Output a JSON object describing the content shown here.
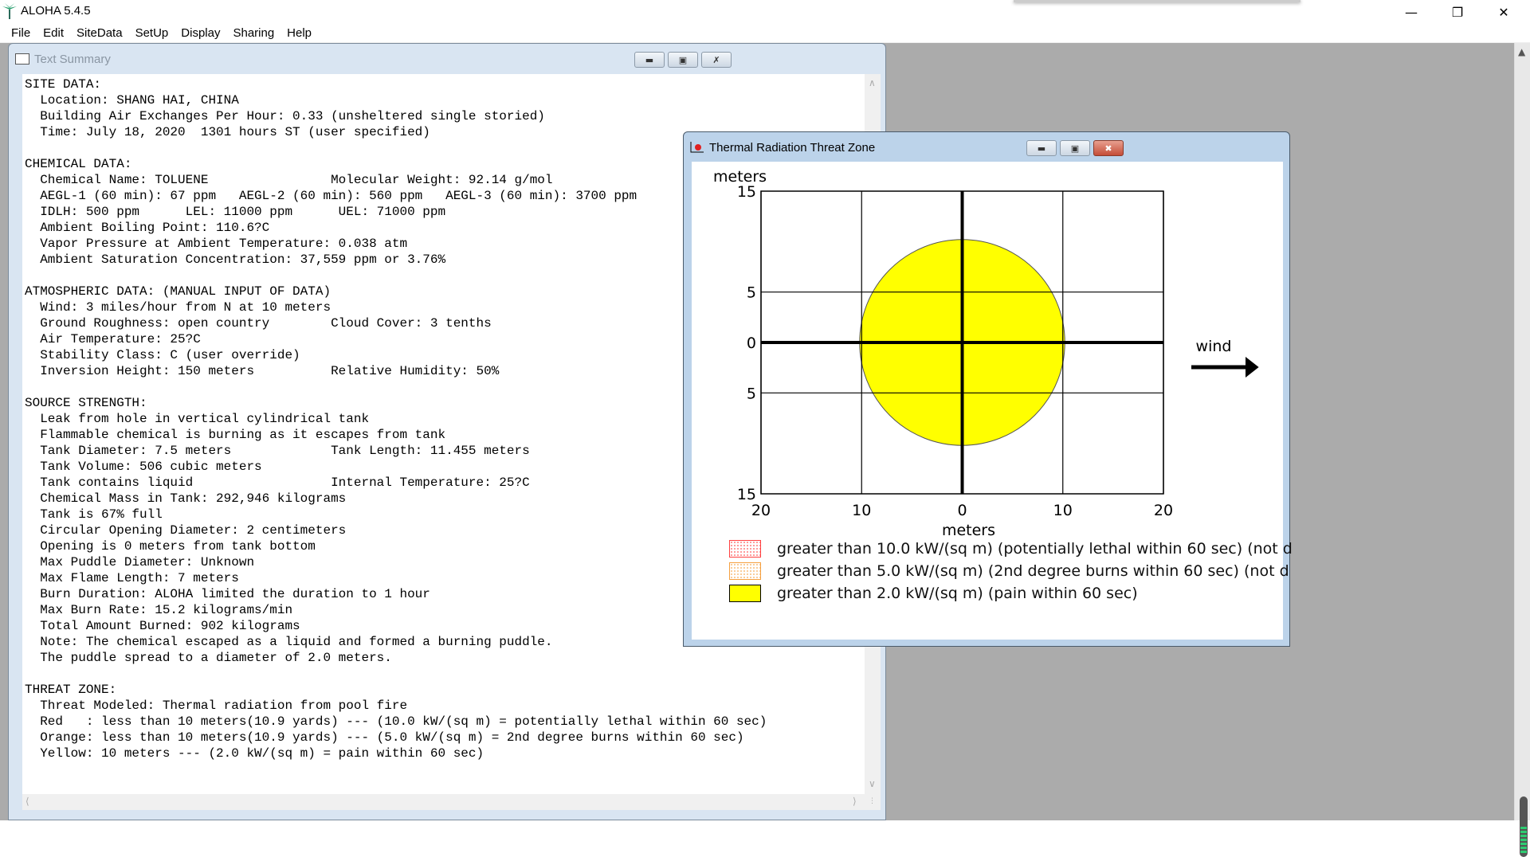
{
  "app": {
    "title": "ALOHA 5.4.5",
    "icon": "palm-tree-icon"
  },
  "menu": [
    "File",
    "Edit",
    "SiteData",
    "SetUp",
    "Display",
    "Sharing",
    "Help"
  ],
  "text_summary": {
    "title": "Text Summary",
    "lines": [
      "SITE DATA:",
      "  Location: SHANG HAI, CHINA",
      "  Building Air Exchanges Per Hour: 0.33 (unsheltered single storied)",
      "  Time: July 18, 2020  1301 hours ST (user specified)",
      "",
      "CHEMICAL DATA:",
      "  Chemical Name: TOLUENE                Molecular Weight: 92.14 g/mol",
      "  AEGL-1 (60 min): 67 ppm   AEGL-2 (60 min): 560 ppm   AEGL-3 (60 min): 3700 ppm",
      "  IDLH: 500 ppm      LEL: 11000 ppm      UEL: 71000 ppm",
      "  Ambient Boiling Point: 110.6?C",
      "  Vapor Pressure at Ambient Temperature: 0.038 atm",
      "  Ambient Saturation Concentration: 37,559 ppm or 3.76%",
      "",
      "ATMOSPHERIC DATA: (MANUAL INPUT OF DATA)",
      "  Wind: 3 miles/hour from N at 10 meters",
      "  Ground Roughness: open country        Cloud Cover: 3 tenths",
      "  Air Temperature: 25?C",
      "  Stability Class: C (user override)",
      "  Inversion Height: 150 meters          Relative Humidity: 50%",
      "",
      "SOURCE STRENGTH:",
      "  Leak from hole in vertical cylindrical tank",
      "  Flammable chemical is burning as it escapes from tank",
      "  Tank Diameter: 7.5 meters             Tank Length: 11.455 meters",
      "  Tank Volume: 506 cubic meters",
      "  Tank contains liquid                  Internal Temperature: 25?C",
      "  Chemical Mass in Tank: 292,946 kilograms",
      "  Tank is 67% full",
      "  Circular Opening Diameter: 2 centimeters",
      "  Opening is 0 meters from tank bottom",
      "  Max Puddle Diameter: Unknown",
      "  Max Flame Length: 7 meters",
      "  Burn Duration: ALOHA limited the duration to 1 hour",
      "  Max Burn Rate: 15.2 kilograms/min",
      "  Total Amount Burned: 902 kilograms",
      "  Note: The chemical escaped as a liquid and formed a burning puddle.",
      "  The puddle spread to a diameter of 2.0 meters.",
      "",
      "THREAT ZONE:",
      "  Threat Modeled: Thermal radiation from pool fire",
      "  Red   : less than 10 meters(10.9 yards) --- (10.0 kW/(sq m) = potentially lethal within 60 sec)",
      "  Orange: less than 10 meters(10.9 yards) --- (5.0 kW/(sq m) = 2nd degree burns within 60 sec)",
      "  Yellow: 10 meters --- (2.0 kW/(sq m) = pain within 60 sec)"
    ]
  },
  "threat_window": {
    "title": "Thermal Radiation Threat Zone",
    "wind_label": "wind",
    "chart_data": {
      "type": "threat-zone-plot",
      "xlabel": "meters",
      "ylabel": "meters",
      "xlim": [
        -20,
        20
      ],
      "ylim": [
        -15,
        15
      ],
      "x_ticks": [
        {
          "v": -20,
          "label": "20"
        },
        {
          "v": -10,
          "label": "10"
        },
        {
          "v": 0,
          "label": "0"
        },
        {
          "v": 10,
          "label": "10"
        },
        {
          "v": 20,
          "label": "20"
        }
      ],
      "y_ticks": [
        {
          "v": 15,
          "label": "15"
        },
        {
          "v": 5,
          "label": "5"
        },
        {
          "v": 0,
          "label": "0"
        },
        {
          "v": -5,
          "label": "5"
        },
        {
          "v": -15,
          "label": "15"
        }
      ],
      "grid": true,
      "zones": [
        {
          "level": "yellow",
          "color": "#ffff00",
          "center": [
            0,
            0
          ],
          "radius_m": 10.2
        }
      ]
    },
    "legend": [
      {
        "text": "greater than 10.0 kW/(sq m) (potentially lethal within 60 sec) (not d",
        "color": "#ff4040",
        "pattern": "dotted"
      },
      {
        "text": "greater than 5.0 kW/(sq m) (2nd degree burns within 60 sec) (not d",
        "color": "#f5a040",
        "pattern": "dotted"
      },
      {
        "text": "greater than 2.0 kW/(sq m) (pain within 60 sec)",
        "color": "#ffff00",
        "pattern": "solid"
      }
    ]
  }
}
